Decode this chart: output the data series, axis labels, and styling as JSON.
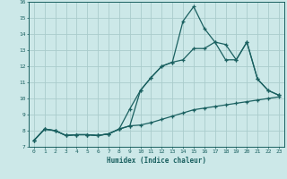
{
  "xlabel": "Humidex (Indice chaleur)",
  "background_color": "#cce8e8",
  "grid_color": "#aacccc",
  "line_color": "#1a6060",
  "xlim": [
    -0.5,
    23.5
  ],
  "ylim": [
    7,
    16
  ],
  "xticks": [
    0,
    1,
    2,
    3,
    4,
    5,
    6,
    7,
    8,
    9,
    10,
    11,
    12,
    13,
    14,
    15,
    16,
    17,
    18,
    19,
    20,
    21,
    22,
    23
  ],
  "yticks": [
    7,
    8,
    9,
    10,
    11,
    12,
    13,
    14,
    15,
    16
  ],
  "curve1_x": [
    0,
    1,
    2,
    3,
    4,
    5,
    6,
    7,
    8,
    9,
    10,
    11,
    12,
    13,
    14,
    15,
    16,
    17,
    18,
    19,
    20,
    21,
    22,
    23
  ],
  "curve1_y": [
    7.4,
    8.1,
    8.0,
    7.7,
    7.75,
    7.75,
    7.7,
    7.8,
    8.1,
    8.3,
    8.35,
    8.5,
    8.7,
    8.9,
    9.1,
    9.3,
    9.4,
    9.5,
    9.6,
    9.7,
    9.8,
    9.9,
    10.0,
    10.1
  ],
  "curve2_x": [
    0,
    1,
    2,
    3,
    4,
    5,
    6,
    7,
    8,
    9,
    10,
    11,
    12,
    13,
    14,
    15,
    16,
    17,
    18,
    19,
    20,
    21,
    22,
    23
  ],
  "curve2_y": [
    7.4,
    8.1,
    8.0,
    7.7,
    7.75,
    7.75,
    7.7,
    7.8,
    8.1,
    8.3,
    10.5,
    11.3,
    12.0,
    12.25,
    12.4,
    13.1,
    13.1,
    13.5,
    12.4,
    12.4,
    13.5,
    11.2,
    10.5,
    10.2
  ],
  "curve3_x": [
    0,
    1,
    2,
    3,
    4,
    5,
    6,
    7,
    8,
    9,
    10,
    11,
    12,
    13,
    14,
    15,
    16,
    17,
    18,
    19,
    20,
    21,
    22,
    23
  ],
  "curve3_y": [
    7.4,
    8.1,
    8.0,
    7.7,
    7.75,
    7.75,
    7.7,
    7.8,
    8.1,
    9.35,
    10.5,
    11.3,
    12.0,
    12.25,
    14.8,
    15.7,
    14.35,
    13.5,
    13.35,
    12.4,
    13.5,
    11.2,
    10.5,
    10.2
  ]
}
